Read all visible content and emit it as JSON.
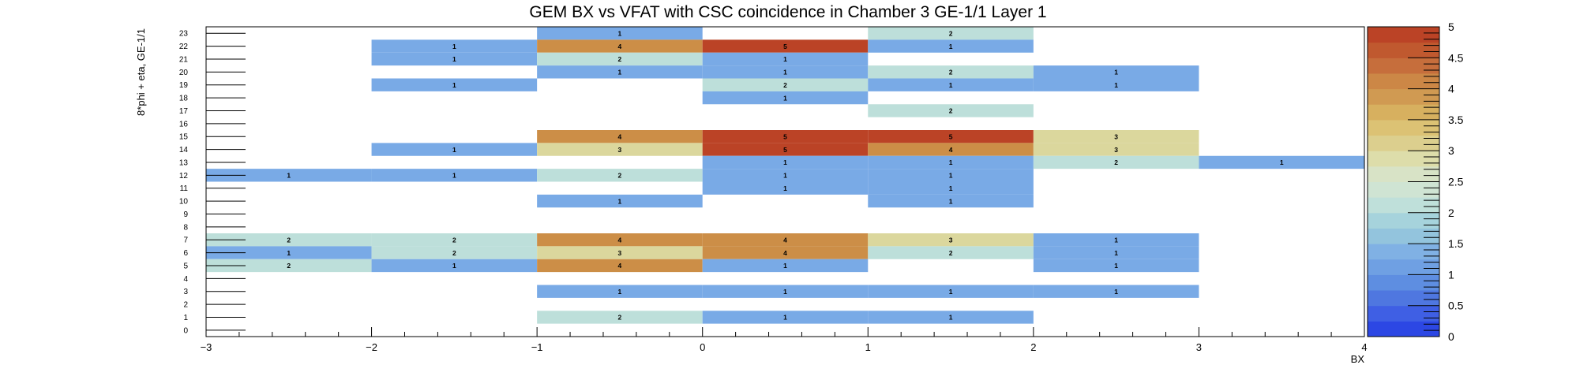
{
  "chart_data": {
    "type": "heatmap",
    "title": "GEM BX vs VFAT with CSC coincidence in Chamber 3 GE-1/1 Layer 1",
    "xlabel": "BX",
    "ylabel": "8*phi + eta, GE-1/1",
    "xlim": [
      -3,
      4
    ],
    "ylim": [
      0,
      24
    ],
    "x_ticks": [
      "−3",
      "−2",
      "−1",
      "0",
      "1",
      "2",
      "3",
      "4"
    ],
    "y_ticks": [
      "0",
      "1",
      "2",
      "3",
      "4",
      "5",
      "6",
      "7",
      "8",
      "9",
      "10",
      "11",
      "12",
      "13",
      "14",
      "15",
      "16",
      "17",
      "18",
      "19",
      "20",
      "21",
      "22",
      "23"
    ],
    "colorbar": {
      "min": 0,
      "max": 5,
      "ticks": [
        "0",
        "0.5",
        "1",
        "1.5",
        "2",
        "2.5",
        "3",
        "3.5",
        "4",
        "4.5",
        "5"
      ],
      "colors": [
        "#2c47e4",
        "#3f5fe4",
        "#4f77e0",
        "#5e8ee1",
        "#6fa0e3",
        "#80b1e4",
        "#93c4dd",
        "#a6d3dc",
        "#bfe0da",
        "#cfe4d3",
        "#d8e3c6",
        "#ddddaa",
        "#dccf8e",
        "#dcc274",
        "#d7b05f",
        "#d09a52",
        "#cc8746",
        "#c66e3c",
        "#c0592f",
        "#bb4326"
      ],
      "cell_colors": {
        "1": "#79aae6",
        "2": "#bddfda",
        "3": "#dbd79d",
        "4": "#cc8e47",
        "5": "#bb4326"
      }
    },
    "cells": [
      {
        "y": 23,
        "x": -1,
        "v": 1
      },
      {
        "y": 23,
        "x": 1,
        "v": 2
      },
      {
        "y": 22,
        "x": -2,
        "v": 1
      },
      {
        "y": 22,
        "x": -1,
        "v": 4
      },
      {
        "y": 22,
        "x": 0,
        "v": 5
      },
      {
        "y": 22,
        "x": 1,
        "v": 1
      },
      {
        "y": 21,
        "x": -2,
        "v": 1
      },
      {
        "y": 21,
        "x": -1,
        "v": 2
      },
      {
        "y": 21,
        "x": 0,
        "v": 1
      },
      {
        "y": 20,
        "x": -1,
        "v": 1
      },
      {
        "y": 20,
        "x": 0,
        "v": 1
      },
      {
        "y": 20,
        "x": 1,
        "v": 2
      },
      {
        "y": 20,
        "x": 2,
        "v": 1
      },
      {
        "y": 19,
        "x": -2,
        "v": 1
      },
      {
        "y": 19,
        "x": 0,
        "v": 2
      },
      {
        "y": 19,
        "x": 1,
        "v": 1
      },
      {
        "y": 19,
        "x": 2,
        "v": 1
      },
      {
        "y": 18,
        "x": 0,
        "v": 1
      },
      {
        "y": 17,
        "x": 1,
        "v": 2
      },
      {
        "y": 15,
        "x": -1,
        "v": 4
      },
      {
        "y": 15,
        "x": 0,
        "v": 5
      },
      {
        "y": 15,
        "x": 1,
        "v": 5
      },
      {
        "y": 15,
        "x": 2,
        "v": 3
      },
      {
        "y": 14,
        "x": -2,
        "v": 1
      },
      {
        "y": 14,
        "x": -1,
        "v": 3
      },
      {
        "y": 14,
        "x": 0,
        "v": 5
      },
      {
        "y": 14,
        "x": 1,
        "v": 4
      },
      {
        "y": 14,
        "x": 2,
        "v": 3
      },
      {
        "y": 13,
        "x": 0,
        "v": 1
      },
      {
        "y": 13,
        "x": 1,
        "v": 1
      },
      {
        "y": 13,
        "x": 2,
        "v": 2
      },
      {
        "y": 13,
        "x": 3,
        "v": 1
      },
      {
        "y": 12,
        "x": -3,
        "v": 1
      },
      {
        "y": 12,
        "x": -2,
        "v": 1
      },
      {
        "y": 12,
        "x": -1,
        "v": 2
      },
      {
        "y": 12,
        "x": 0,
        "v": 1
      },
      {
        "y": 12,
        "x": 1,
        "v": 1
      },
      {
        "y": 11,
        "x": 0,
        "v": 1
      },
      {
        "y": 11,
        "x": 1,
        "v": 1
      },
      {
        "y": 10,
        "x": -1,
        "v": 1
      },
      {
        "y": 10,
        "x": 1,
        "v": 1
      },
      {
        "y": 7,
        "x": -3,
        "v": 2
      },
      {
        "y": 7,
        "x": -2,
        "v": 2
      },
      {
        "y": 7,
        "x": -1,
        "v": 4
      },
      {
        "y": 7,
        "x": 0,
        "v": 4
      },
      {
        "y": 7,
        "x": 1,
        "v": 3
      },
      {
        "y": 7,
        "x": 2,
        "v": 1
      },
      {
        "y": 6,
        "x": -3,
        "v": 1
      },
      {
        "y": 6,
        "x": -2,
        "v": 2
      },
      {
        "y": 6,
        "x": -1,
        "v": 3
      },
      {
        "y": 6,
        "x": 0,
        "v": 4
      },
      {
        "y": 6,
        "x": 1,
        "v": 2
      },
      {
        "y": 6,
        "x": 2,
        "v": 1
      },
      {
        "y": 5,
        "x": -3,
        "v": 2
      },
      {
        "y": 5,
        "x": -2,
        "v": 1
      },
      {
        "y": 5,
        "x": -1,
        "v": 4
      },
      {
        "y": 5,
        "x": 0,
        "v": 1
      },
      {
        "y": 5,
        "x": 2,
        "v": 1
      },
      {
        "y": 3,
        "x": -1,
        "v": 1
      },
      {
        "y": 3,
        "x": 0,
        "v": 1
      },
      {
        "y": 3,
        "x": 1,
        "v": 1
      },
      {
        "y": 3,
        "x": 2,
        "v": 1
      },
      {
        "y": 1,
        "x": -1,
        "v": 2
      },
      {
        "y": 1,
        "x": 0,
        "v": 1
      },
      {
        "y": 1,
        "x": 1,
        "v": 1
      }
    ],
    "grid": false,
    "legend": "colorbar-right"
  }
}
